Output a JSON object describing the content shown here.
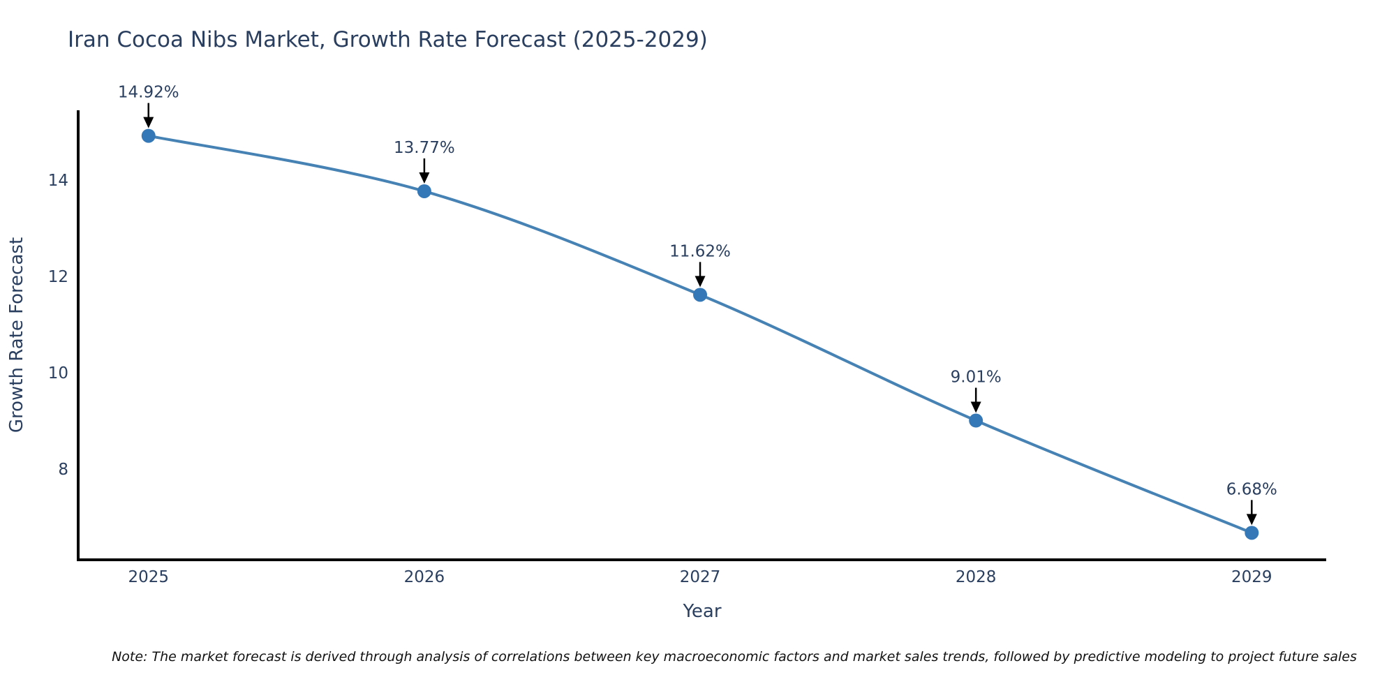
{
  "note": "Note: The market forecast is derived through analysis of correlations between key macroeconomic factors and market sales trends, followed by predictive modeling to project future sales",
  "chart_data": {
    "type": "line",
    "title": "Iran Cocoa Nibs Market, Growth Rate Forecast (2025-2029)",
    "xlabel": "Year",
    "ylabel": "Growth Rate Forecast",
    "categories": [
      "2025",
      "2026",
      "2027",
      "2028",
      "2029"
    ],
    "x": [
      2025,
      2026,
      2027,
      2028,
      2029
    ],
    "series": [
      {
        "name": "Growth Rate Forecast",
        "values": [
          14.92,
          13.77,
          11.62,
          9.01,
          6.68
        ]
      }
    ],
    "data_labels": [
      "14.92%",
      "13.77%",
      "11.62%",
      "9.01%",
      "6.68%"
    ],
    "ytick_labels": [
      "8",
      "10",
      "12",
      "14"
    ],
    "ytick_values": [
      8,
      10,
      12,
      14
    ],
    "xlim": [
      2024.745,
      2029.27
    ],
    "ylim": [
      6.12,
      15.45
    ],
    "grid": false,
    "legend_position": "none",
    "curve": "spline",
    "line_color": "#4682b4",
    "marker_color": "#3578b8",
    "axis_color": "#000000",
    "text_color": "#2a3f5f",
    "annotation_arrow_color": "#000000",
    "background": "#ffffff"
  }
}
